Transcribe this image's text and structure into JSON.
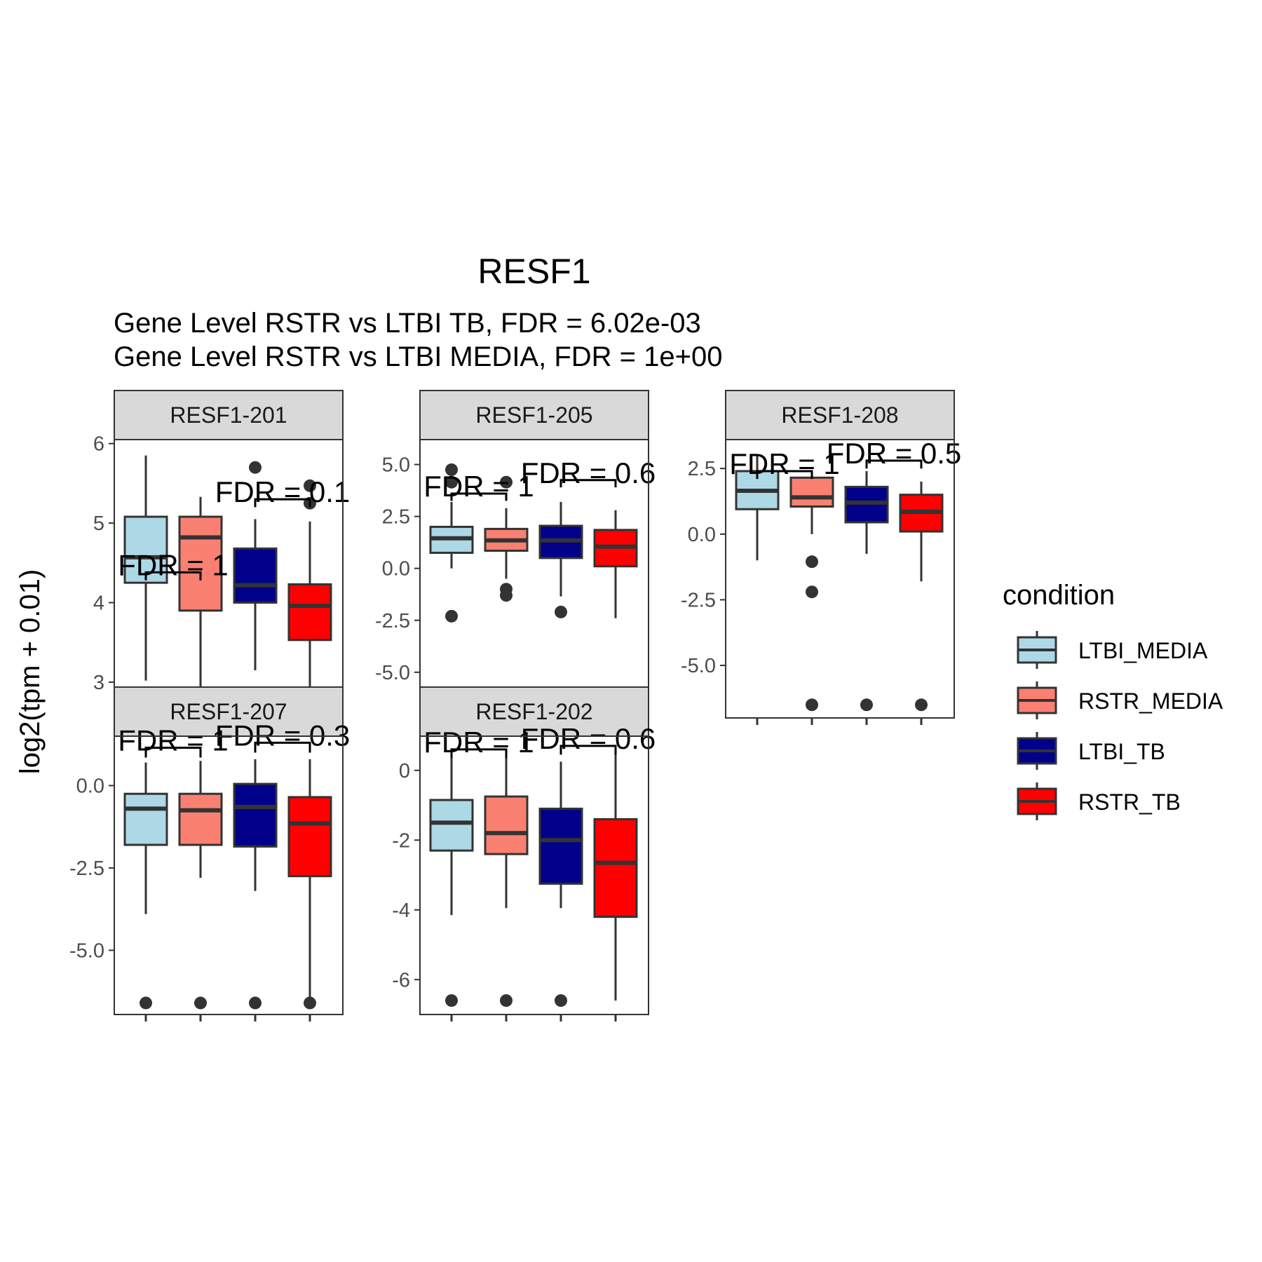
{
  "chart_data": {
    "type": "boxplot",
    "title": "RESF1",
    "subtitle_lines": [
      "Gene Level RSTR vs LTBI TB, FDR =  6.02e-03",
      "Gene Level RSTR vs LTBI MEDIA, FDR =  1e+00"
    ],
    "ylabel": "log2(tpm + 0.01)",
    "legend": {
      "title": "condition",
      "position": "right",
      "entries": [
        {
          "name": "LTBI_MEDIA",
          "color": "#add8e6"
        },
        {
          "name": "RSTR_MEDIA",
          "color": "#fa8072"
        },
        {
          "name": "LTBI_TB",
          "color": "#00008b"
        },
        {
          "name": "RSTR_TB",
          "color": "#ff0000"
        }
      ]
    },
    "panels": [
      {
        "label": "RESF1-201",
        "ylim": [
          2.55,
          6.05
        ],
        "yticks": [
          3,
          4,
          5,
          6
        ],
        "ytick_labels": [
          "3",
          "4",
          "5",
          "6"
        ],
        "boxes": [
          {
            "group": "LTBI_MEDIA",
            "min": 3.02,
            "q1": 4.25,
            "median": 4.57,
            "q3": 5.08,
            "max": 5.85,
            "outliers": []
          },
          {
            "group": "RSTR_MEDIA",
            "min": 2.63,
            "q1": 3.9,
            "median": 4.82,
            "q3": 5.08,
            "max": 5.33,
            "outliers": []
          },
          {
            "group": "LTBI_TB",
            "min": 3.15,
            "q1": 4.0,
            "median": 4.22,
            "q3": 4.68,
            "max": 5.05,
            "outliers": [
              5.7
            ]
          },
          {
            "group": "RSTR_TB",
            "min": 2.58,
            "q1": 3.53,
            "median": 3.96,
            "q3": 4.23,
            "max": 5.02,
            "outliers": [
              5.25,
              5.47
            ]
          }
        ],
        "annotations": [
          {
            "text": "FDR =  1",
            "from": 0,
            "to": 1,
            "y": 4.38,
            "tick_drop": 0.1
          },
          {
            "text": "FDR =  0.1",
            "from": 2,
            "to": 3,
            "y": 5.3,
            "tick_drop": 0.1
          }
        ]
      },
      {
        "label": "RESF1-205",
        "ylim": [
          -7.2,
          6.2
        ],
        "yticks": [
          5.0,
          2.5,
          0.0,
          -2.5,
          -5.0
        ],
        "ytick_labels": [
          "5.0",
          "2.5",
          "0.0",
          "-2.5",
          "-5.0"
        ],
        "boxes": [
          {
            "group": "LTBI_MEDIA",
            "min": 0.0,
            "q1": 0.75,
            "median": 1.45,
            "q3": 2.0,
            "max": 3.2,
            "outliers": [
              4.75,
              4.15,
              -2.3
            ]
          },
          {
            "group": "RSTR_MEDIA",
            "min": -0.5,
            "q1": 0.85,
            "median": 1.35,
            "q3": 1.9,
            "max": 2.9,
            "outliers": [
              4.15,
              -1.0,
              -1.3
            ]
          },
          {
            "group": "LTBI_TB",
            "min": -1.35,
            "q1": 0.5,
            "median": 1.35,
            "q3": 2.05,
            "max": 3.2,
            "outliers": [
              -2.1
            ]
          },
          {
            "group": "RSTR_TB",
            "min": -2.4,
            "q1": 0.1,
            "median": 1.05,
            "q3": 1.85,
            "max": 2.8,
            "outliers": [
              -6.6
            ]
          }
        ],
        "annotations": [
          {
            "text": "FDR =  1",
            "from": 0,
            "to": 1,
            "y": 3.6,
            "tick_drop": 0.35
          },
          {
            "text": "FDR =  0.6",
            "from": 2,
            "to": 3,
            "y": 4.25,
            "tick_drop": 0.35
          }
        ]
      },
      {
        "label": "RESF1-208",
        "ylim": [
          -7.0,
          3.6
        ],
        "yticks": [
          2.5,
          0.0,
          -2.5,
          -5.0
        ],
        "ytick_labels": [
          "2.5",
          "0.0",
          "-2.5",
          "-5.0"
        ],
        "boxes": [
          {
            "group": "LTBI_MEDIA",
            "min": -1.0,
            "q1": 0.95,
            "median": 1.65,
            "q3": 2.4,
            "max": 3.0,
            "outliers": []
          },
          {
            "group": "RSTR_MEDIA",
            "min": 0.0,
            "q1": 1.05,
            "median": 1.4,
            "q3": 2.15,
            "max": 2.4,
            "outliers": [
              -1.05,
              -2.2,
              -6.5
            ]
          },
          {
            "group": "LTBI_TB",
            "min": -0.75,
            "q1": 0.45,
            "median": 1.2,
            "q3": 1.8,
            "max": 2.4,
            "outliers": [
              -6.5
            ]
          },
          {
            "group": "RSTR_TB",
            "min": -1.8,
            "q1": 0.1,
            "median": 0.85,
            "q3": 1.5,
            "max": 2.0,
            "outliers": [
              -6.5
            ]
          }
        ],
        "annotations": [
          {
            "text": "FDR =  1",
            "from": 0,
            "to": 1,
            "y": 2.4,
            "tick_drop": 0.3
          },
          {
            "text": "FDR =  0.5",
            "from": 2,
            "to": 3,
            "y": 2.8,
            "tick_drop": 0.3
          }
        ]
      },
      {
        "label": "RESF1-207",
        "ylim": [
          -6.95,
          1.5
        ],
        "yticks": [
          0.0,
          -2.5,
          -5.0
        ],
        "ytick_labels": [
          "0.0",
          "-2.5",
          "-5.0"
        ],
        "boxes": [
          {
            "group": "LTBI_MEDIA",
            "min": -3.9,
            "q1": -1.8,
            "median": -0.7,
            "q3": -0.25,
            "max": 0.7,
            "outliers": [
              -6.6
            ]
          },
          {
            "group": "RSTR_MEDIA",
            "min": -2.8,
            "q1": -1.8,
            "median": -0.75,
            "q3": -0.25,
            "max": 0.75,
            "outliers": [
              -6.6
            ]
          },
          {
            "group": "LTBI_TB",
            "min": -3.2,
            "q1": -1.85,
            "median": -0.65,
            "q3": 0.05,
            "max": 0.8,
            "outliers": [
              -6.6
            ]
          },
          {
            "group": "RSTR_TB",
            "min": -6.6,
            "q1": -2.75,
            "median": -1.15,
            "q3": -0.35,
            "max": 0.8,
            "outliers": [
              -6.6
            ]
          }
        ],
        "annotations": [
          {
            "text": "FDR =  1",
            "from": 0,
            "to": 1,
            "y": 1.15,
            "tick_drop": 0.3
          },
          {
            "text": "FDR =  0.3",
            "from": 2,
            "to": 3,
            "y": 1.3,
            "tick_drop": 0.3
          }
        ]
      },
      {
        "label": "RESF1-202",
        "ylim": [
          -7.0,
          0.98
        ],
        "yticks": [
          0,
          -2,
          -4,
          -6
        ],
        "ytick_labels": [
          "0",
          "-2",
          "-4",
          "-6"
        ],
        "boxes": [
          {
            "group": "LTBI_MEDIA",
            "min": -4.15,
            "q1": -2.3,
            "median": -1.5,
            "q3": -0.85,
            "max": 0.6,
            "outliers": [
              -6.6
            ]
          },
          {
            "group": "RSTR_MEDIA",
            "min": -3.95,
            "q1": -2.4,
            "median": -1.8,
            "q3": -0.75,
            "max": 0.6,
            "outliers": [
              -6.6
            ]
          },
          {
            "group": "LTBI_TB",
            "min": -3.95,
            "q1": -3.25,
            "median": -2.0,
            "q3": -1.1,
            "max": 0.25,
            "outliers": [
              -6.6
            ]
          },
          {
            "group": "RSTR_TB",
            "min": -6.6,
            "q1": -4.2,
            "median": -2.65,
            "q3": -1.4,
            "max": 0.6,
            "outliers": []
          }
        ],
        "annotations": [
          {
            "text": "FDR =  1",
            "from": 0,
            "to": 1,
            "y": 0.6,
            "tick_drop": 0.25
          },
          {
            "text": "FDR =  0.6",
            "from": 2,
            "to": 3,
            "y": 0.7,
            "tick_drop": 0.25
          }
        ]
      }
    ]
  }
}
